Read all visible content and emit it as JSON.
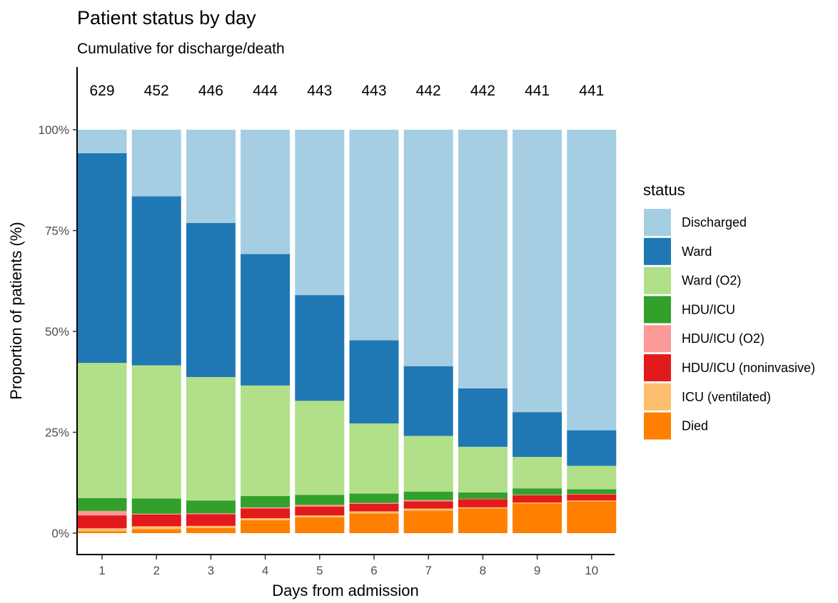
{
  "chart_data": {
    "type": "bar",
    "stacked": true,
    "title": "Patient status by day",
    "subtitle": "Cumulative for discharge/death",
    "xlabel": "Days from admission",
    "ylabel": "Proportion of patients (%)",
    "ylim": [
      0,
      100
    ],
    "yticks": [
      "0%",
      "25%",
      "50%",
      "75%",
      "100%"
    ],
    "ytick_values": [
      0,
      25,
      50,
      75,
      100
    ],
    "categories": [
      "1",
      "2",
      "3",
      "4",
      "5",
      "6",
      "7",
      "8",
      "9",
      "10"
    ],
    "counts": [
      "629",
      "452",
      "446",
      "444",
      "443",
      "443",
      "442",
      "442",
      "441",
      "441"
    ],
    "grid": false,
    "legend": {
      "title": "status",
      "placement": "right"
    },
    "series": [
      {
        "name": "Died",
        "color": "#FF7F00",
        "values": [
          0.5,
          1.0,
          1.3,
          3.2,
          3.9,
          4.9,
          5.6,
          6.1,
          7.4,
          7.9
        ]
      },
      {
        "name": "ICU (ventilated)",
        "color": "#FDBF6F",
        "values": [
          0.7,
          0.7,
          0.5,
          0.5,
          0.5,
          0.5,
          0.5,
          0.3,
          0.2,
          0.2
        ]
      },
      {
        "name": "HDU/ICU (noninvasive)",
        "color": "#E31A1C",
        "values": [
          3.2,
          2.9,
          2.9,
          2.4,
          2.2,
          1.9,
          1.8,
          2.0,
          1.8,
          1.5
        ]
      },
      {
        "name": "HDU/ICU (O2)",
        "color": "#FB9A99",
        "values": [
          1.1,
          0.2,
          0.2,
          0.3,
          0.4,
          0.2,
          0.3,
          0.1,
          0.1,
          0.1
        ]
      },
      {
        "name": "HDU/ICU",
        "color": "#33A02C",
        "values": [
          3.2,
          3.8,
          3.2,
          2.8,
          2.5,
          2.3,
          2.1,
          1.6,
          1.6,
          1.2
        ]
      },
      {
        "name": "Ward (O2)",
        "color": "#B2DF8A",
        "values": [
          33.5,
          33.0,
          30.6,
          27.4,
          23.3,
          17.4,
          13.8,
          11.3,
          7.8,
          5.8
        ]
      },
      {
        "name": "Ward",
        "color": "#1F78B4",
        "values": [
          52.0,
          41.9,
          38.2,
          32.6,
          26.2,
          20.6,
          17.3,
          14.5,
          11.1,
          8.8
        ]
      },
      {
        "name": "Discharged",
        "color": "#A6CEE3",
        "values": [
          5.8,
          16.5,
          23.1,
          30.8,
          41.0,
          52.2,
          58.6,
          64.1,
          70.0,
          74.5
        ]
      }
    ],
    "legend_order": [
      "Discharged",
      "Ward",
      "Ward (O2)",
      "HDU/ICU",
      "HDU/ICU (O2)",
      "HDU/ICU (noninvasive)",
      "ICU (ventilated)",
      "Died"
    ]
  }
}
